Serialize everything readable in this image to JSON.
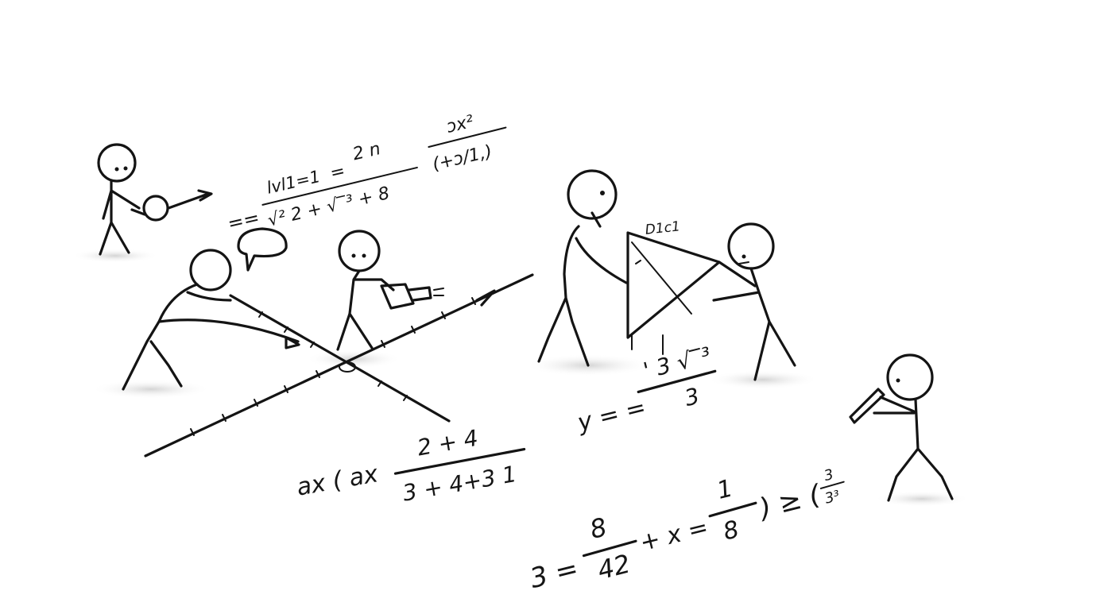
{
  "sketch": {
    "colors": {
      "ink": "#141414",
      "paper": "#ffffff",
      "shadow": "#d8d8d8"
    },
    "notes": {
      "top_left": {
        "lhs": "== ",
        "num1": "lvl1=1",
        "den1": "√² 2 + √‾³ + 8",
        "eq": "=",
        "num2": "2 n",
        "num3": "ɔx²",
        "den3": "(+ɔ/1,)"
      },
      "mid_left": {
        "ax": "ax ( ax",
        "num": "2 + 4",
        "den": "3 + 4+3 1"
      },
      "right": {
        "triangle_label": "D1c1",
        "y_eq": "y = =",
        "num": "' 3 √‾³",
        "den": "3"
      },
      "bottom": {
        "lhs": "3 =",
        "num1": "8",
        "den1": "42",
        "mid": "+ x =",
        "num2": "1",
        "den2": "8",
        "tail": ") ≥ (",
        "num3": "3",
        "den3": "3³"
      }
    }
  }
}
